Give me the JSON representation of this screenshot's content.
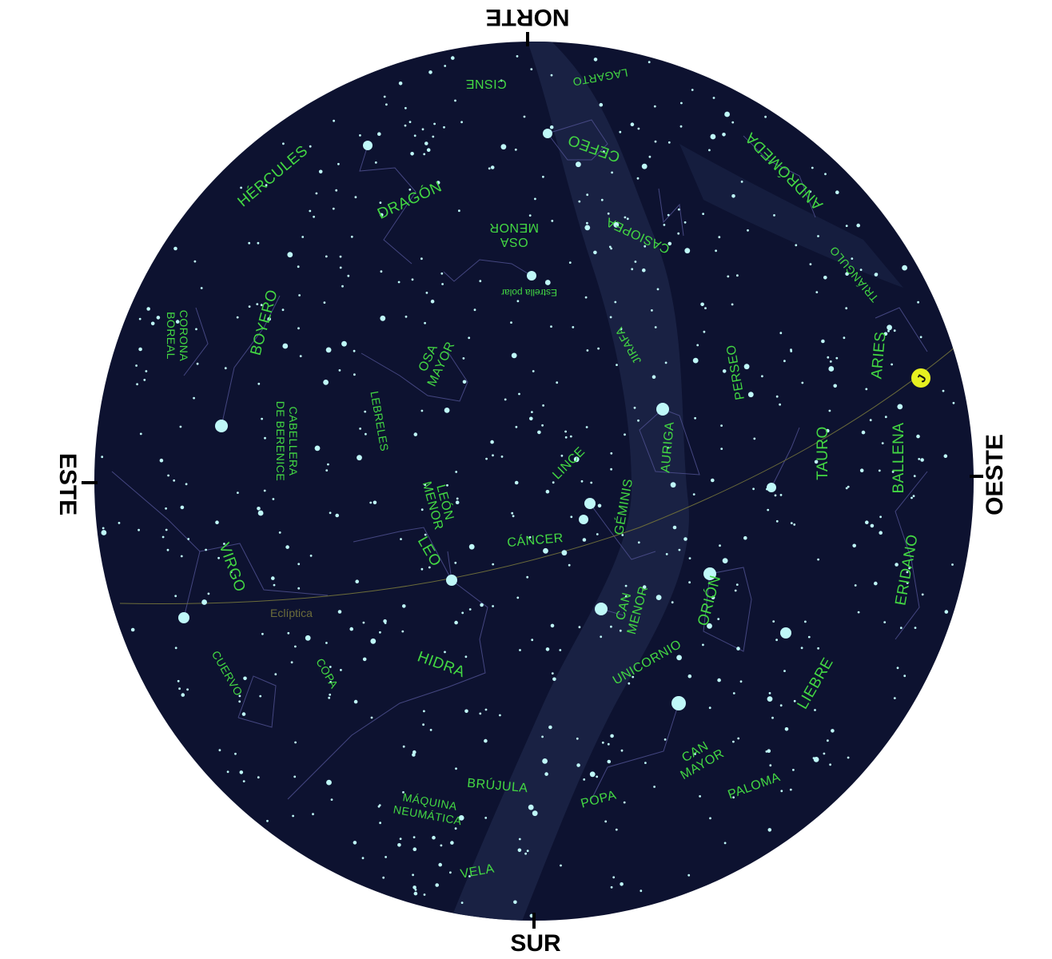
{
  "directions": {
    "north": "NORTE",
    "south": "SUR",
    "east": "ESTE",
    "west": "OESTE"
  },
  "colors": {
    "sky": "#0d1230",
    "milky_way": "#1c2547",
    "label": "#43d843",
    "star": "#bff8f8",
    "ecliptic": "#6c6c3a",
    "planet": "#e6f020"
  },
  "planet_marker": "J",
  "polar_star": "Estrella polar",
  "ecliptic_label": "Eclíptica",
  "constellations": [
    {
      "id": "cisne",
      "lines": [
        "CISNE"
      ]
    },
    {
      "id": "lagarto",
      "lines": [
        "LAGARTO"
      ]
    },
    {
      "id": "cefeo",
      "lines": [
        "CEFEO"
      ]
    },
    {
      "id": "andromeda",
      "lines": [
        "ANDRÓMEDA"
      ]
    },
    {
      "id": "hercules",
      "lines": [
        "HÉRCULES"
      ]
    },
    {
      "id": "dragon",
      "lines": [
        "DRAGÓN"
      ]
    },
    {
      "id": "osa-menor",
      "lines": [
        "OSA",
        "MENOR"
      ]
    },
    {
      "id": "casiopea",
      "lines": [
        "CASIOPEA"
      ]
    },
    {
      "id": "triangulo",
      "lines": [
        "TRIÁNGULO"
      ]
    },
    {
      "id": "corona-boreal",
      "lines": [
        "CORONA",
        "BOREAL"
      ]
    },
    {
      "id": "boyero",
      "lines": [
        "BOYERO"
      ]
    },
    {
      "id": "osa-mayor",
      "lines": [
        "OSA",
        "MAYOR"
      ]
    },
    {
      "id": "jirafa",
      "lines": [
        "JIRAFA"
      ]
    },
    {
      "id": "perseo",
      "lines": [
        "PERSEO"
      ]
    },
    {
      "id": "aries",
      "lines": [
        "ARIES"
      ]
    },
    {
      "id": "lebreles",
      "lines": [
        "LEBRELES"
      ]
    },
    {
      "id": "cabellera",
      "lines": [
        "CABELLERA",
        "DE BERENICE"
      ]
    },
    {
      "id": "auriga",
      "lines": [
        "AURIGA"
      ]
    },
    {
      "id": "tauro",
      "lines": [
        "TAURO"
      ]
    },
    {
      "id": "ballena",
      "lines": [
        "BALLENA"
      ]
    },
    {
      "id": "lince",
      "lines": [
        "LINCE"
      ]
    },
    {
      "id": "leon-menor",
      "lines": [
        "LEÓN",
        "MENOR"
      ]
    },
    {
      "id": "geminis",
      "lines": [
        "GÉMINIS"
      ]
    },
    {
      "id": "cancer",
      "lines": [
        "CÁNCER"
      ]
    },
    {
      "id": "virgo",
      "lines": [
        "VIRGO"
      ]
    },
    {
      "id": "leo",
      "lines": [
        "LEO"
      ]
    },
    {
      "id": "eridano",
      "lines": [
        "ERIDANO"
      ]
    },
    {
      "id": "can-menor",
      "lines": [
        "CAN",
        "MENOR"
      ]
    },
    {
      "id": "orion",
      "lines": [
        "ORIÓN"
      ]
    },
    {
      "id": "cuervo",
      "lines": [
        "CUERVO"
      ]
    },
    {
      "id": "copa",
      "lines": [
        "COPA"
      ]
    },
    {
      "id": "hidra",
      "lines": [
        "HIDRA"
      ]
    },
    {
      "id": "unicornio",
      "lines": [
        "UNICORNIO"
      ]
    },
    {
      "id": "liebre",
      "lines": [
        "LIEBRE"
      ]
    },
    {
      "id": "can-mayor",
      "lines": [
        "CAN",
        "MAYOR"
      ]
    },
    {
      "id": "brujula",
      "lines": [
        "BRÚJULA"
      ]
    },
    {
      "id": "popa",
      "lines": [
        "POPA"
      ]
    },
    {
      "id": "paloma",
      "lines": [
        "PALOMA"
      ]
    },
    {
      "id": "maquina-neumatica",
      "lines": [
        "MÁQUINA",
        "NEUMÁTICA"
      ]
    },
    {
      "id": "vela",
      "lines": [
        "VELA"
      ]
    }
  ]
}
